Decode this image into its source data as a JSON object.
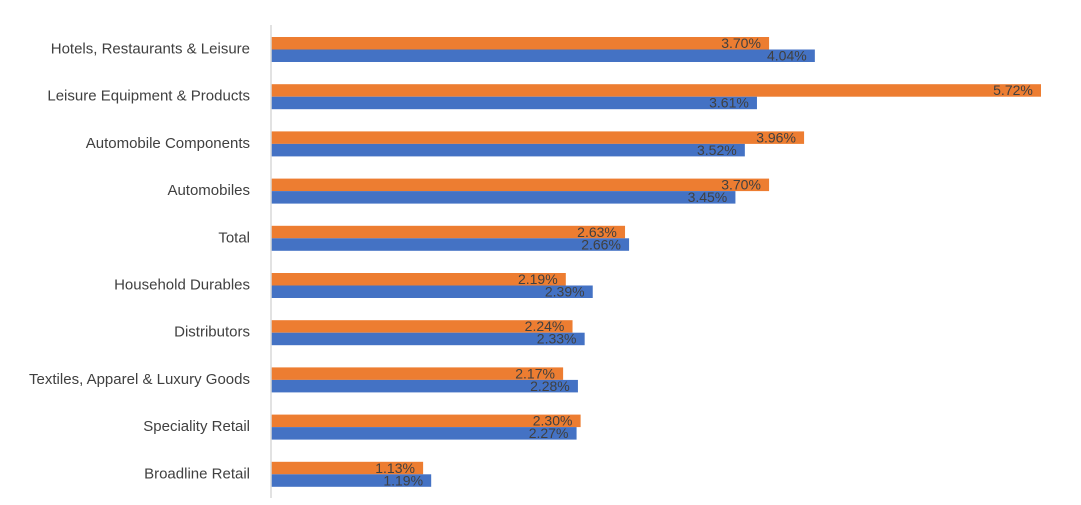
{
  "chart_data": {
    "type": "bar",
    "orientation": "horizontal",
    "categories": [
      "Hotels, Restaurants & Leisure",
      "Leisure Equipment & Products",
      "Automobile Components",
      "Automobiles",
      "Total",
      "Household Durables",
      "Distributors",
      "Textiles, Apparel & Luxury Goods",
      "Speciality Retail",
      "Broadline Retail"
    ],
    "series": [
      {
        "color": "#ed7d31",
        "values": [
          3.7,
          5.72,
          3.96,
          3.7,
          2.63,
          2.19,
          2.24,
          2.17,
          2.3,
          1.13
        ],
        "labels": [
          "3.70%",
          "5.72%",
          "3.96%",
          "3.70%",
          "2.63%",
          "2.19%",
          "2.24%",
          "2.17%",
          "2.30%",
          "1.13%"
        ]
      },
      {
        "color": "#4472c4",
        "values": [
          4.04,
          3.61,
          3.52,
          3.45,
          2.66,
          2.39,
          2.33,
          2.28,
          2.27,
          1.19
        ],
        "labels": [
          "4.04%",
          "3.61%",
          "3.52%",
          "3.45%",
          "2.66%",
          "2.39%",
          "2.33%",
          "2.28%",
          "2.27%",
          "1.19%"
        ]
      }
    ],
    "xlim": [
      0,
      5.72
    ],
    "grid": false,
    "legend": "none",
    "axis_color": "#d9d9d9"
  }
}
